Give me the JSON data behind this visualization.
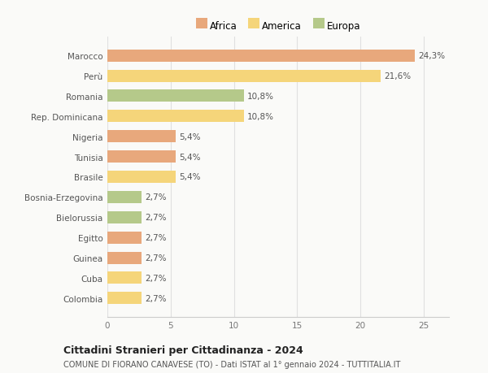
{
  "countries": [
    "Marocco",
    "Perù",
    "Romania",
    "Rep. Dominicana",
    "Nigeria",
    "Tunisia",
    "Brasile",
    "Bosnia-Erzegovina",
    "Bielorussia",
    "Egitto",
    "Guinea",
    "Cuba",
    "Colombia"
  ],
  "values": [
    24.3,
    21.6,
    10.8,
    10.8,
    5.4,
    5.4,
    5.4,
    2.7,
    2.7,
    2.7,
    2.7,
    2.7,
    2.7
  ],
  "continents": [
    "Africa",
    "America",
    "Europa",
    "America",
    "Africa",
    "Africa",
    "America",
    "Europa",
    "Europa",
    "Africa",
    "Africa",
    "America",
    "America"
  ],
  "colors": {
    "Africa": "#E8A87C",
    "America": "#F5D57A",
    "Europa": "#B5C98A"
  },
  "legend_labels": [
    "Africa",
    "America",
    "Europa"
  ],
  "legend_colors": [
    "#E8A87C",
    "#F5D57A",
    "#B5C98A"
  ],
  "xlim": [
    0,
    27
  ],
  "xticks": [
    0,
    5,
    10,
    15,
    20,
    25
  ],
  "title": "Cittadini Stranieri per Cittadinanza - 2024",
  "subtitle": "COMUNE DI FIORANO CANAVESE (TO) - Dati ISTAT al 1° gennaio 2024 - TUTTITALIA.IT",
  "bg_color": "#FAFAF8",
  "bar_height": 0.6,
  "label_fontsize": 7.5,
  "tick_fontsize": 7.5,
  "title_fontsize": 9,
  "subtitle_fontsize": 7
}
